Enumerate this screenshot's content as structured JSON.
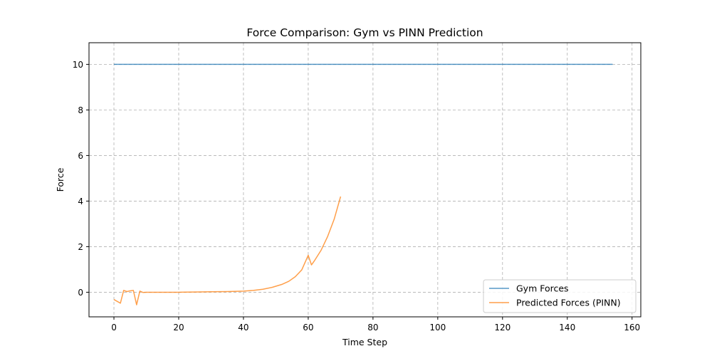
{
  "chart_data": {
    "type": "line",
    "title": "Force Comparison: Gym vs PINN Prediction",
    "xlabel": "Time Step",
    "ylabel": "Force",
    "xlim": [
      -7.7,
      162.7
    ],
    "ylim": [
      -1.08,
      10.95
    ],
    "xticks": [
      0,
      20,
      40,
      60,
      80,
      100,
      120,
      140,
      160
    ],
    "yticks": [
      0,
      2,
      4,
      6,
      8,
      10
    ],
    "grid": true,
    "legend_position": "lower-right",
    "series": [
      {
        "name": "Gym Forces",
        "color": "#1f77b4",
        "points": [
          [
            0,
            10
          ],
          [
            154,
            10
          ]
        ]
      },
      {
        "name": "Predicted Forces (PINN)",
        "color": "#ff7f0e",
        "points": [
          [
            0,
            -0.32
          ],
          [
            2,
            -0.48
          ],
          [
            3,
            0.08
          ],
          [
            4,
            0.03
          ],
          [
            5,
            0.06
          ],
          [
            6,
            0.08
          ],
          [
            7,
            -0.55
          ],
          [
            8,
            0.05
          ],
          [
            9,
            -0.01
          ],
          [
            10,
            0.0
          ],
          [
            15,
            0.0
          ],
          [
            20,
            0.0
          ],
          [
            25,
            0.01
          ],
          [
            30,
            0.02
          ],
          [
            35,
            0.03
          ],
          [
            40,
            0.05
          ],
          [
            43,
            0.08
          ],
          [
            46,
            0.13
          ],
          [
            49,
            0.22
          ],
          [
            52,
            0.35
          ],
          [
            54,
            0.48
          ],
          [
            56,
            0.68
          ],
          [
            58,
            0.98
          ],
          [
            60,
            1.62
          ],
          [
            61,
            1.2
          ],
          [
            62,
            1.4
          ],
          [
            64,
            1.85
          ],
          [
            66,
            2.45
          ],
          [
            68,
            3.2
          ],
          [
            69,
            3.7
          ],
          [
            70,
            4.2
          ]
        ]
      }
    ]
  }
}
